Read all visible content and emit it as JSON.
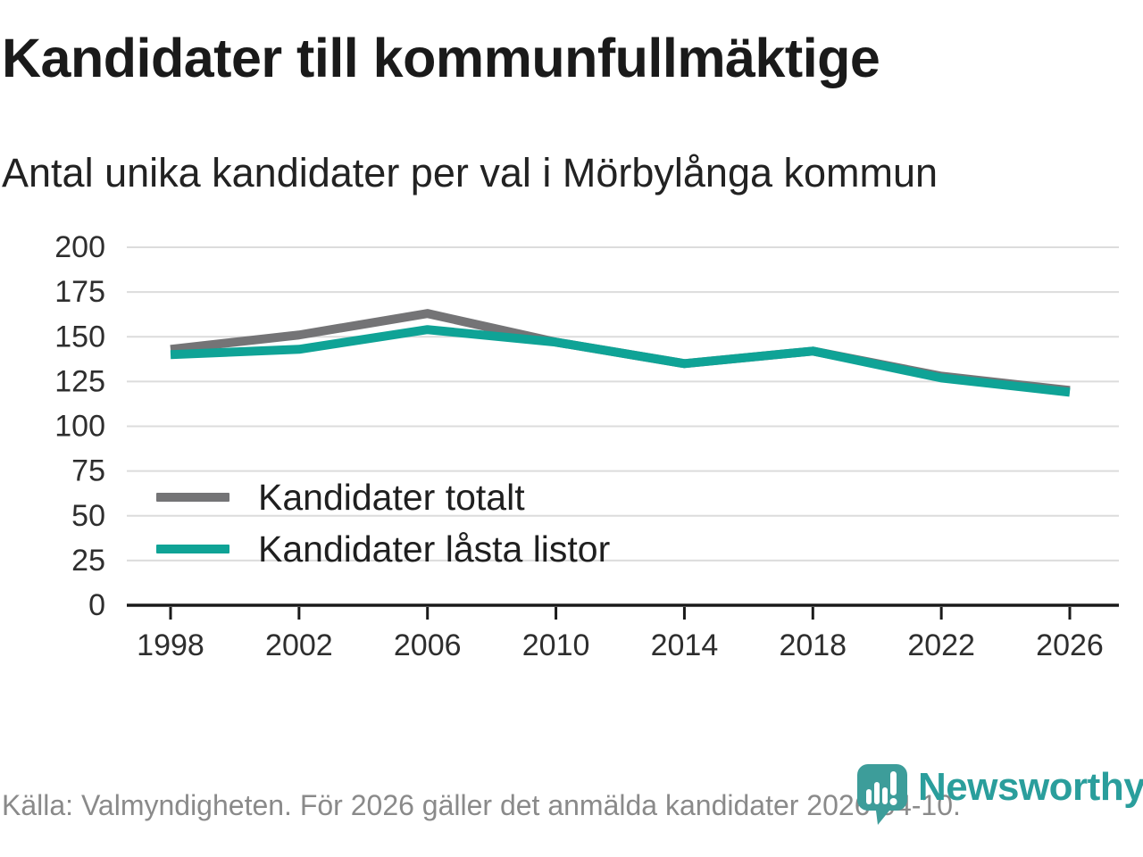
{
  "header": {
    "title": "Kandidater till kommunfullmäktige",
    "subtitle": "Antal unika kandidater per val i Mörbylånga kommun"
  },
  "footer": {
    "source": "Källa: Valmyndigheten. För 2026 gäller det anmälda kandidater 2026-04-10.",
    "logo_text": "Newsworthy"
  },
  "colors": {
    "grid": "#dcdcdc",
    "axis": "#1a1a1a",
    "tick_label": "#2e2e2e",
    "footer_text": "#8a8a8a",
    "logo_icon": "#3D9D9A",
    "logo_text": "#2A9E9C"
  },
  "chart_data": {
    "type": "line",
    "title": "Kandidater till kommunfullmäktige",
    "subtitle": "Antal unika kandidater per val i Mörbylånga kommun",
    "categories": [
      "1998",
      "2002",
      "2006",
      "2010",
      "2014",
      "2018",
      "2022",
      "2026"
    ],
    "series": [
      {
        "name": "Kandidater totalt",
        "color": "#747476",
        "values": [
          143,
          151,
          163,
          147,
          135,
          142,
          128,
          120
        ]
      },
      {
        "name": "Kandidater låsta listor",
        "color": "#0FA396",
        "values": [
          140,
          143,
          154,
          147,
          135,
          142,
          127,
          119
        ]
      }
    ],
    "xlabel": "",
    "ylabel": "",
    "ylim": [
      0,
      200
    ],
    "yticks": [
      0,
      25,
      50,
      75,
      100,
      125,
      150,
      175,
      200
    ],
    "grid": "horizontal",
    "legend_position": "inside-left"
  }
}
